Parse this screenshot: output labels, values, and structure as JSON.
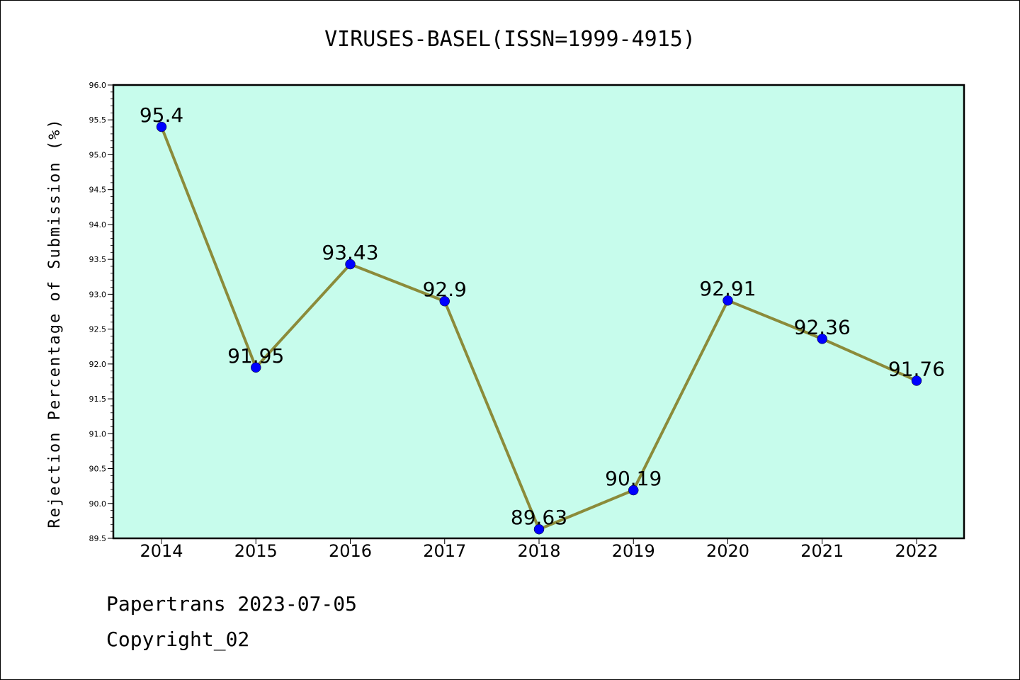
{
  "chart_data": {
    "type": "line",
    "title": "VIRUSES-BASEL(ISSN=1999-4915)",
    "xlabel": "",
    "ylabel": "Rejection Percentage of Submission (%)",
    "categories": [
      "2014",
      "2015",
      "2016",
      "2017",
      "2018",
      "2019",
      "2020",
      "2021",
      "2022"
    ],
    "series": [
      {
        "values": [
          95.4,
          91.95,
          93.43,
          92.9,
          89.63,
          90.19,
          92.91,
          92.36,
          91.76
        ]
      }
    ],
    "data_labels": [
      "95.4",
      "91.95",
      "93.43",
      "92.9",
      "89.63",
      "90.19",
      "92.91",
      "92.36",
      "91.76"
    ],
    "ylim": [
      89.5,
      96.0
    ],
    "yticks": [
      "89.5",
      "90.0",
      "90.5",
      "91.0",
      "91.5",
      "92.0",
      "92.5",
      "93.0",
      "93.5",
      "94.0",
      "94.5",
      "95.0",
      "95.5",
      "96.0"
    ],
    "grid": false,
    "colors": {
      "plot_bg": "#c7fcec",
      "line": "#8b8b3a",
      "marker": "#0000ff"
    }
  },
  "footer": {
    "line1": "Papertrans 2023-07-05",
    "line2": "Copyright_02"
  }
}
